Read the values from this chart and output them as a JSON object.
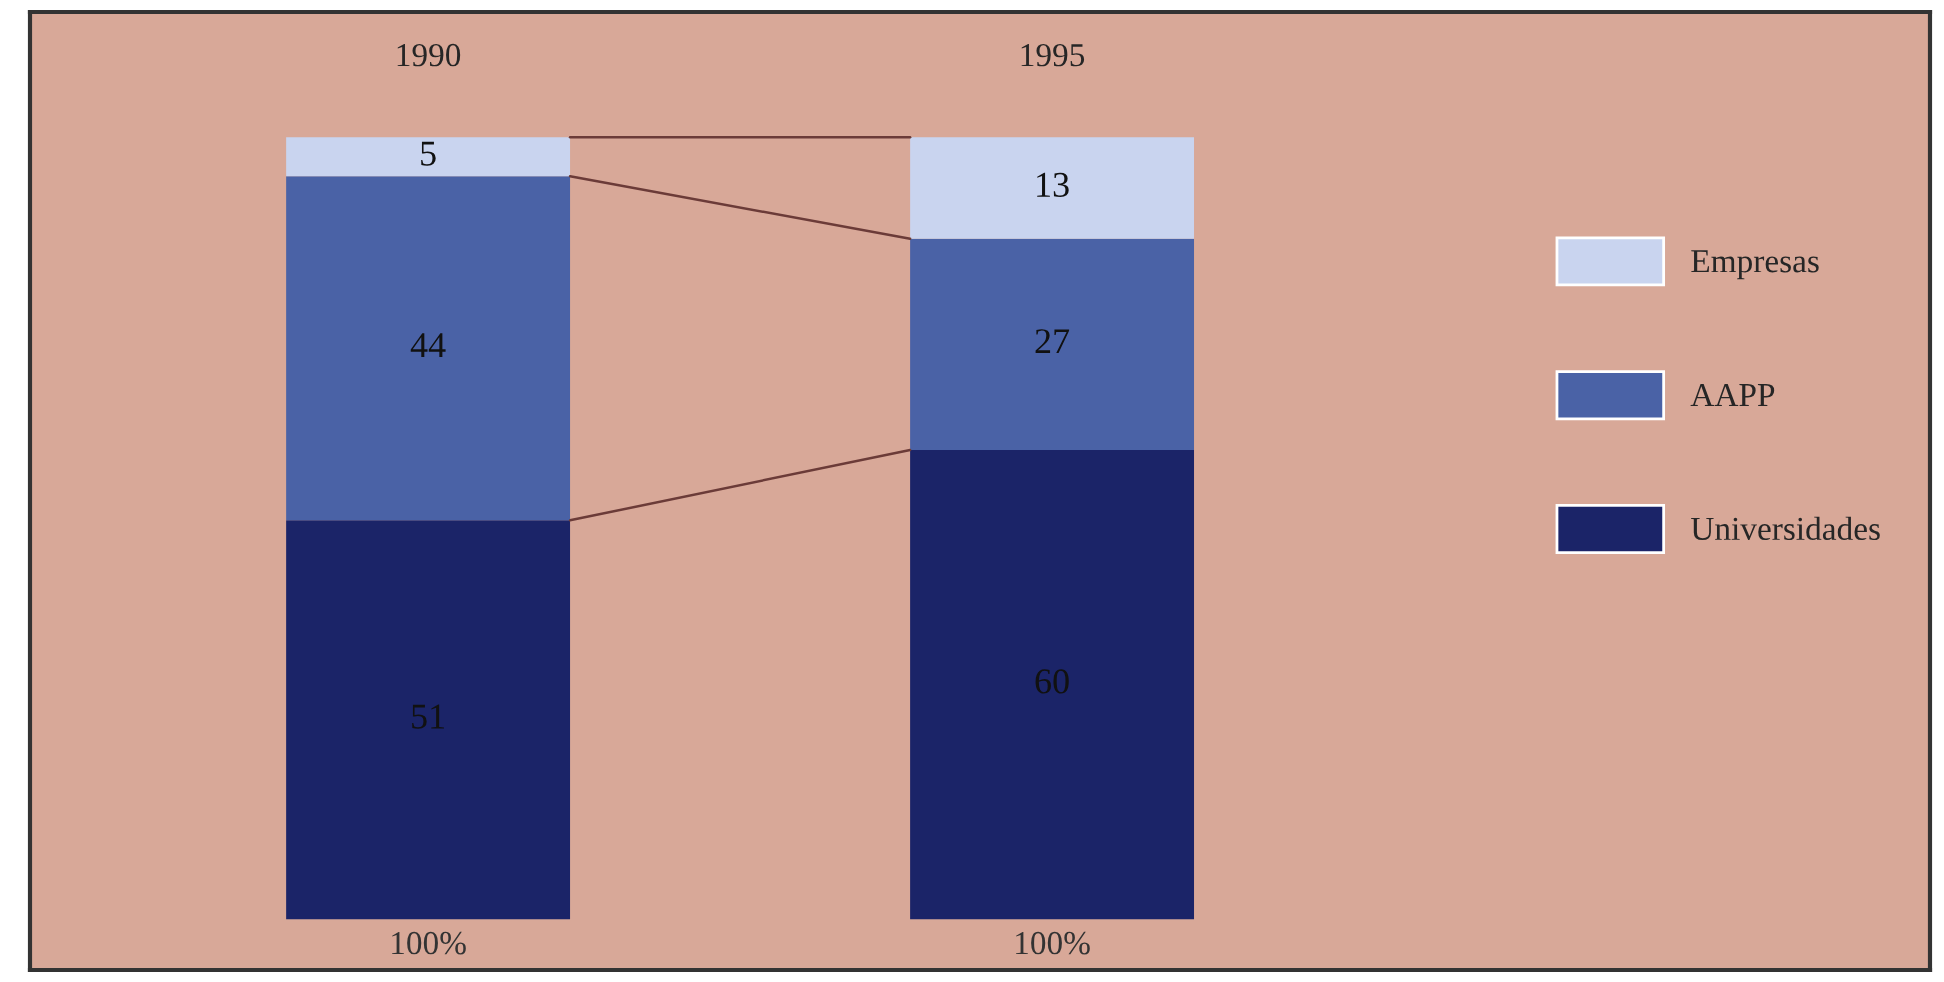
{
  "chart_data": {
    "type": "bar",
    "stacked": true,
    "categories": [
      "1990",
      "1995"
    ],
    "series": [
      {
        "name": "Universidades",
        "color": "#1b2468",
        "values": [
          51,
          60
        ]
      },
      {
        "name": "AAPP",
        "color": "#4a62a6",
        "values": [
          44,
          27
        ]
      },
      {
        "name": "Empresas",
        "color": "#c9d4ef",
        "values": [
          5,
          13
        ]
      }
    ],
    "data_labels": true,
    "totals": [
      "100%",
      "100%"
    ],
    "legend": "right"
  }
}
